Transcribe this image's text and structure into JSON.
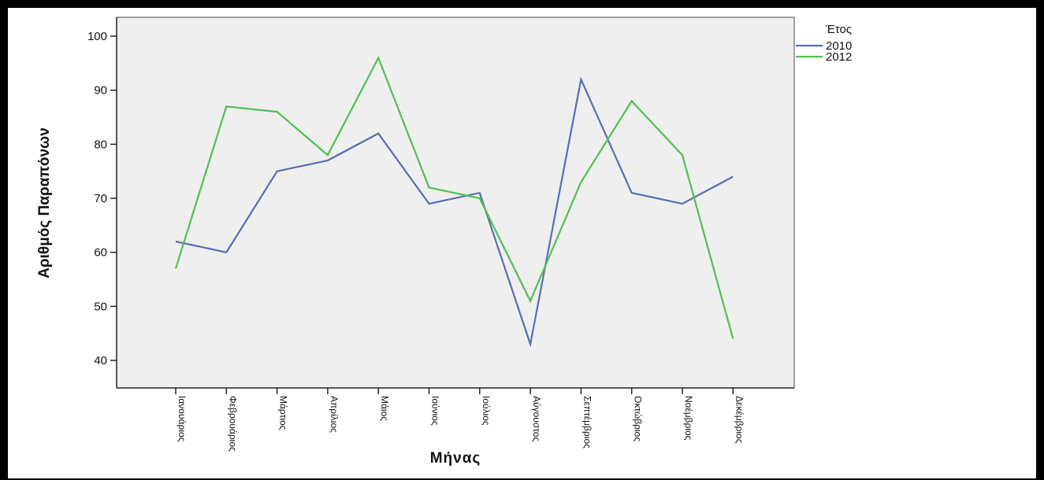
{
  "chart_data": {
    "type": "line",
    "title": "",
    "xlabel": "Μήνας",
    "ylabel": "Αριθμός Παραπόνων",
    "ylim": [
      40,
      100
    ],
    "yticks": [
      "40",
      "50",
      "60",
      "70",
      "80",
      "90",
      "100"
    ],
    "grid": false,
    "legend_title": "Έτος",
    "legend_position": "top-right",
    "categories": [
      "Ιανουάριος",
      "Φεβρουάριος",
      "Μάρτιος",
      "Απρίλιος",
      "Μάιος",
      "Ιούνιος",
      "Ιούλιος",
      "Αύγουστος",
      "Σεπτέμβριος",
      "Οκτώβριος",
      "Νοέμβριος",
      "Δεκέμβριος"
    ],
    "series": [
      {
        "name": "2010",
        "color": "#5a6db5",
        "values": [
          62,
          60,
          75,
          77,
          82,
          69,
          71,
          43,
          92,
          71,
          69,
          74
        ]
      },
      {
        "name": "2012",
        "color": "#4ec24e",
        "values": [
          57,
          87,
          86,
          78,
          96,
          72,
          70,
          51,
          73,
          88,
          78,
          44
        ]
      }
    ],
    "plot_background": "#efefef"
  }
}
